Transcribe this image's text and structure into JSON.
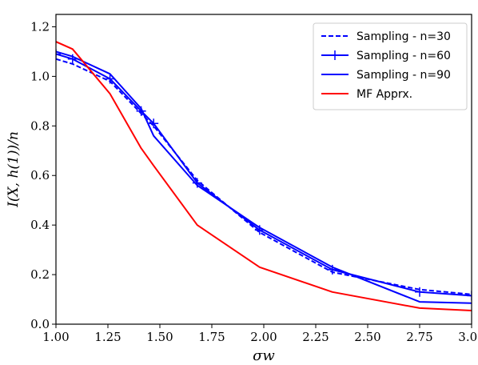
{
  "chart_data": {
    "type": "line",
    "xlabel": "σw",
    "ylabel": "I(X, h(1))/n",
    "xlim": [
      1.0,
      3.0
    ],
    "ylim": [
      0.0,
      1.25
    ],
    "x_ticks": [
      "1.00",
      "1.25",
      "1.50",
      "1.75",
      "2.00",
      "2.25",
      "2.50",
      "2.75",
      "3.00"
    ],
    "x_tick_values": [
      1.0,
      1.25,
      1.5,
      1.75,
      2.0,
      2.25,
      2.5,
      2.75,
      3.0
    ],
    "y_ticks": [
      "0.0",
      "0.2",
      "0.4",
      "0.6",
      "0.8",
      "1.0",
      "1.2"
    ],
    "y_tick_values": [
      0.0,
      0.2,
      0.4,
      0.6,
      0.8,
      1.0,
      1.2
    ],
    "grid": false,
    "legend_position": "top-right",
    "series": [
      {
        "name": "Sampling - n=30",
        "color": "#0000ff",
        "style": "dashed",
        "marker": "none",
        "x": [
          1.0,
          1.08,
          1.26,
          1.41,
          1.47,
          1.68,
          1.98,
          2.33,
          2.75,
          3.0
        ],
        "y": [
          1.07,
          1.05,
          0.98,
          0.85,
          0.8,
          0.58,
          0.37,
          0.21,
          0.14,
          0.12
        ]
      },
      {
        "name": "Sampling - n=60",
        "color": "#0000ff",
        "style": "solid",
        "marker": "plus",
        "x": [
          1.0,
          1.08,
          1.26,
          1.41,
          1.47,
          1.68,
          1.98,
          2.33,
          2.75,
          3.0
        ],
        "y": [
          1.09,
          1.07,
          0.99,
          0.86,
          0.81,
          0.57,
          0.38,
          0.22,
          0.13,
          0.115
        ]
      },
      {
        "name": "Sampling - n=90",
        "color": "#0000ff",
        "style": "solid",
        "marker": "none",
        "x": [
          1.0,
          1.08,
          1.26,
          1.41,
          1.47,
          1.68,
          1.98,
          2.33,
          2.75,
          3.0
        ],
        "y": [
          1.1,
          1.08,
          1.01,
          0.87,
          0.76,
          0.56,
          0.39,
          0.23,
          0.09,
          0.085
        ]
      },
      {
        "name": "MF Apprx.",
        "color": "#ff0000",
        "style": "solid",
        "marker": "none",
        "x": [
          1.0,
          1.08,
          1.26,
          1.41,
          1.47,
          1.68,
          1.98,
          2.33,
          2.75,
          3.0
        ],
        "y": [
          1.14,
          1.11,
          0.93,
          0.71,
          0.64,
          0.4,
          0.23,
          0.13,
          0.065,
          0.055
        ]
      }
    ]
  }
}
